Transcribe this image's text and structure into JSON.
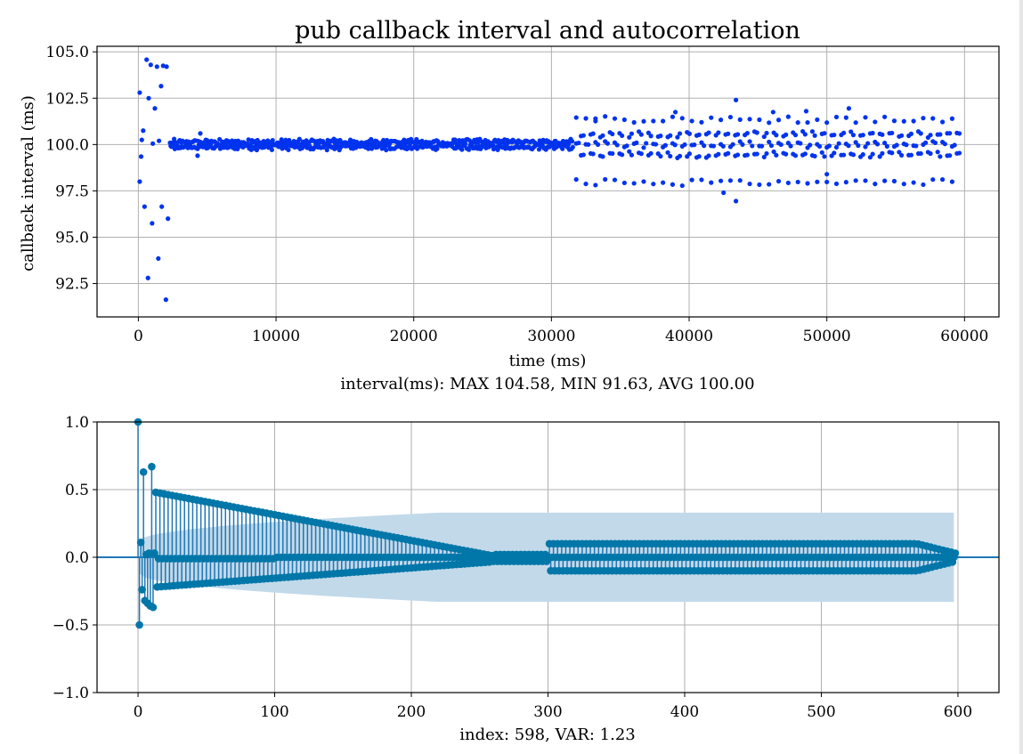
{
  "chart_data": [
    {
      "type": "scatter",
      "title": "pub callback interval and autocorrelation",
      "xlabel": "time (ms)",
      "ylabel": "callback interval (ms)",
      "caption": "interval(ms): MAX 104.58, MIN 91.63, AVG 100.00",
      "xlim": [
        -3000,
        62500
      ],
      "ylim": [
        90.7,
        105.3
      ],
      "xticks": [
        0,
        10000,
        20000,
        30000,
        40000,
        50000,
        60000
      ],
      "xtick_labels": [
        "0",
        "10000",
        "20000",
        "30000",
        "40000",
        "50000",
        "60000"
      ],
      "yticks": [
        92.5,
        95.0,
        97.5,
        100.0,
        102.5,
        105.0
      ],
      "ytick_labels": [
        "92.5",
        "95.0",
        "97.5",
        "100.0",
        "102.5",
        "105.0"
      ],
      "grid": true,
      "marker_color": "#0033ee",
      "series": [
        {
          "points_initial": [
            [
              98,
              98.0
            ],
            [
              100,
              102.8
            ],
            [
              200,
              99.35
            ],
            [
              250,
              100.25
            ],
            [
              350,
              100.75
            ],
            [
              450,
              96.65
            ],
            [
              600,
              104.58
            ],
            [
              700,
              92.8
            ],
            [
              750,
              102.5
            ],
            [
              900,
              104.3
            ],
            [
              1000,
              95.75
            ],
            [
              1050,
              100.05
            ],
            [
              1200,
              101.95
            ],
            [
              1350,
              104.2
            ],
            [
              1450,
              93.85
            ],
            [
              1500,
              100.2
            ],
            [
              1650,
              103.15
            ],
            [
              1700,
              96.65
            ],
            [
              1800,
              104.25
            ],
            [
              2000,
              91.63
            ],
            [
              2050,
              104.2
            ],
            [
              2150,
              96.0
            ]
          ],
          "stable_segment": {
            "x_range": [
              2300,
              31500
            ],
            "step": 100,
            "center": 100.0,
            "spread": 0.3,
            "outliers": [
              [
                4300,
                99.4
              ],
              [
                4500,
                100.6
              ]
            ]
          },
          "noisy_segment": {
            "x_range": [
              31800,
              59700
            ],
            "step": 700,
            "bands": [
              101.35,
              100.55,
              100.0,
              99.45,
              97.95
            ],
            "extra_points": [
              [
                33200,
                101.4
              ],
              [
                43400,
                102.4
              ],
              [
                43400,
                96.95
              ],
              [
                42500,
                97.4
              ],
              [
                50000,
                98.4
              ],
              [
                51600,
                101.95
              ],
              [
                46100,
                101.75
              ],
              [
                48500,
                101.8
              ],
              [
                39000,
                101.75
              ]
            ]
          }
        }
      ]
    },
    {
      "type": "stem",
      "xlabel": "index: 598, VAR: 1.23",
      "ylabel": "",
      "xlim": [
        -30,
        630
      ],
      "ylim": [
        -1.0,
        1.0
      ],
      "xticks": [
        0,
        100,
        200,
        300,
        400,
        500,
        600
      ],
      "xtick_labels": [
        "0",
        "100",
        "200",
        "300",
        "400",
        "500",
        "600"
      ],
      "yticks": [
        -1.0,
        -0.5,
        0.0,
        0.5,
        1.0
      ],
      "ytick_labels": [
        "−1.0",
        "−0.5",
        "0.0",
        "0.5",
        "1.0"
      ],
      "grid": true,
      "stem_color": "#1f77b4",
      "marker_color": "#0077a8",
      "band_color": "#c2d9ea",
      "band_x_range": [
        1,
        597
      ],
      "band_start": 0.12,
      "band_end": 0.33,
      "lags_max": 598,
      "initial_values": [
        1.0,
        -0.5,
        0.11,
        -0.24,
        0.63,
        -0.32,
        0.02,
        -0.34,
        0.03,
        -0.36,
        0.67,
        -0.37,
        0.03
      ],
      "decay_pattern": {
        "period": 3,
        "start_lag": 13,
        "positive_envelope": {
          "start": 0.47,
          "zero_at": 260,
          "later_amplitude": 0.1
        },
        "negative_envelope": {
          "start": -0.22,
          "zero_at": 260,
          "later_amplitude": -0.1
        },
        "middle_value": 0.0
      }
    }
  ]
}
